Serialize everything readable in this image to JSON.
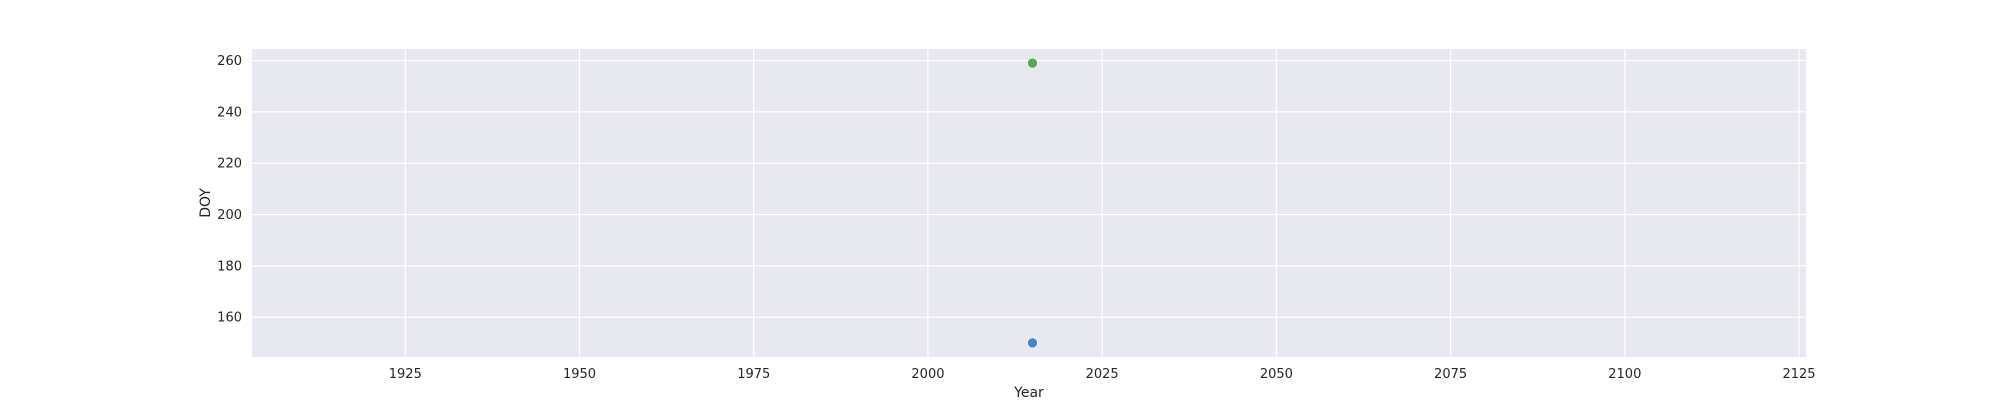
{
  "chart_data": {
    "type": "scatter",
    "title": "",
    "xlabel": "Year",
    "ylabel": "DOY",
    "xlim": [
      1903,
      2126
    ],
    "ylim": [
      144.5,
      264.5
    ],
    "xticks": [
      1925,
      1950,
      1975,
      2000,
      2025,
      2050,
      2075,
      2100,
      2125
    ],
    "yticks": [
      160,
      180,
      200,
      220,
      240,
      260
    ],
    "grid": true,
    "legend": "none",
    "series": [
      {
        "points": [
          {
            "x": 2015,
            "y": 150
          }
        ],
        "color": "#3d7fbf"
      },
      {
        "points": [
          {
            "x": 2015,
            "y": 259
          }
        ],
        "color": "#4aa84a"
      }
    ],
    "background_color": "#e8e8f0",
    "grid_color": "#ffffff"
  }
}
